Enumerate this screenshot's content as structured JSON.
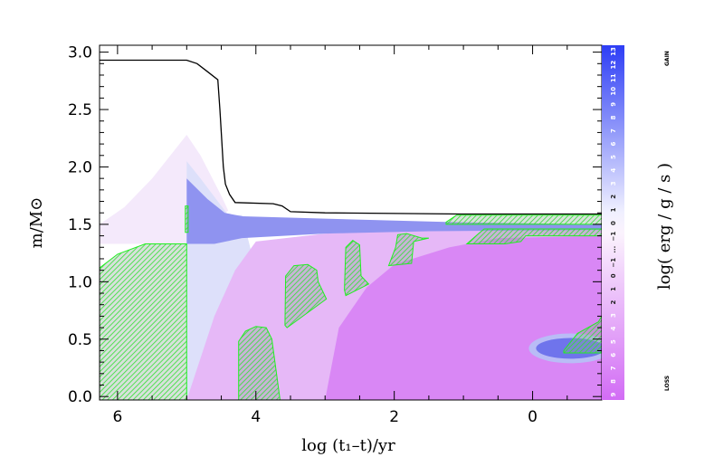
{
  "chart_data": {
    "type": "area",
    "xlabel": "log (t₁–t)/yr",
    "ylabel": "m/M⊙",
    "xlim": [
      6.26,
      -1.0
    ],
    "ylim": [
      -0.03,
      3.06
    ],
    "x_reversed": true,
    "x_ticks": [
      6,
      4,
      2,
      0
    ],
    "x_tick_labels": [
      "6",
      "4",
      "2",
      "0"
    ],
    "y_ticks": [
      0.0,
      0.5,
      1.0,
      1.5,
      2.0,
      2.5,
      3.0
    ],
    "y_tick_labels": [
      "0.0",
      "0.5",
      "1.0",
      "1.5",
      "2.0",
      "2.5",
      "3.0"
    ],
    "grid": false,
    "total_mass_line": {
      "color": "#000000",
      "points": [
        [
          6.26,
          2.93
        ],
        [
          5.0,
          2.93
        ],
        [
          4.85,
          2.9
        ],
        [
          4.7,
          2.83
        ],
        [
          4.55,
          2.76
        ],
        [
          4.52,
          2.5
        ],
        [
          4.47,
          2.0
        ],
        [
          4.44,
          1.85
        ],
        [
          4.38,
          1.76
        ],
        [
          4.3,
          1.69
        ],
        [
          3.75,
          1.68
        ],
        [
          3.62,
          1.66
        ],
        [
          3.5,
          1.61
        ],
        [
          3.0,
          1.6
        ],
        [
          1.0,
          1.59
        ],
        [
          -1.0,
          1.59
        ]
      ]
    },
    "energy_regions": [
      {
        "level": "loss-low",
        "color": "#f4e9fb",
        "polygon": [
          [
            6.26,
            1.5
          ],
          [
            5.9,
            1.65
          ],
          [
            5.5,
            1.9
          ],
          [
            5.0,
            2.28
          ],
          [
            4.8,
            2.1
          ],
          [
            4.5,
            1.75
          ],
          [
            4.4,
            1.62
          ],
          [
            5.0,
            1.33
          ],
          [
            6.26,
            1.33
          ]
        ]
      },
      {
        "level": "gain-low",
        "color": "#dde0fa",
        "polygon": [
          [
            5.0,
            2.05
          ],
          [
            4.8,
            1.9
          ],
          [
            4.55,
            1.7
          ],
          [
            4.4,
            1.58
          ],
          [
            4.2,
            1.58
          ],
          [
            4.0,
            1.1
          ],
          [
            3.8,
            0.75
          ],
          [
            3.6,
            0.5
          ],
          [
            5.0,
            -0.03
          ]
        ]
      },
      {
        "level": "loss-mid",
        "color": "#e6b8f7",
        "polygon": [
          [
            5.0,
            -0.03
          ],
          [
            4.6,
            0.7
          ],
          [
            4.3,
            1.1
          ],
          [
            4.0,
            1.35
          ],
          [
            3.0,
            1.42
          ],
          [
            1.5,
            1.45
          ],
          [
            -1.0,
            1.45
          ],
          [
            -1.0,
            -0.03
          ]
        ]
      },
      {
        "level": "loss-high",
        "color": "#d987f5",
        "polygon": [
          [
            3.0,
            -0.03
          ],
          [
            2.8,
            0.6
          ],
          [
            2.4,
            0.95
          ],
          [
            2.0,
            1.15
          ],
          [
            1.2,
            1.3
          ],
          [
            0.5,
            1.38
          ],
          [
            -1.0,
            1.4
          ],
          [
            -1.0,
            -0.03
          ]
        ]
      },
      {
        "level": "gain-mid",
        "color": "#8f93f0",
        "polygon": [
          [
            5.0,
            1.33
          ],
          [
            5.0,
            1.9
          ],
          [
            4.7,
            1.72
          ],
          [
            4.45,
            1.6
          ],
          [
            4.2,
            1.57
          ],
          [
            3.0,
            1.55
          ],
          [
            1.2,
            1.52
          ],
          [
            -1.0,
            1.5
          ],
          [
            -1.0,
            1.45
          ],
          [
            1.5,
            1.44
          ],
          [
            3.0,
            1.42
          ],
          [
            4.2,
            1.38
          ],
          [
            4.6,
            1.33
          ]
        ]
      },
      {
        "level": "gain-mid",
        "color": "#6f74ec",
        "ellipse": {
          "cx": -0.55,
          "cy": 0.42,
          "rx": 0.5,
          "ry": 0.09
        }
      }
    ],
    "convective_zones": [
      {
        "polygon": [
          [
            6.26,
            1.12
          ],
          [
            6.0,
            1.24
          ],
          [
            5.6,
            1.33
          ],
          [
            5.0,
            1.33
          ],
          [
            5.0,
            -0.03
          ],
          [
            6.26,
            -0.03
          ]
        ]
      },
      {
        "polygon": [
          [
            4.25,
            -0.03
          ],
          [
            4.25,
            0.48
          ],
          [
            4.15,
            0.57
          ],
          [
            4.0,
            0.61
          ],
          [
            3.85,
            0.6
          ],
          [
            3.77,
            0.5
          ],
          [
            3.65,
            -0.03
          ]
        ]
      },
      {
        "polygon": [
          [
            3.58,
            0.62
          ],
          [
            3.57,
            1.05
          ],
          [
            3.45,
            1.14
          ],
          [
            3.25,
            1.15
          ],
          [
            3.12,
            1.1
          ],
          [
            3.1,
            1.0
          ],
          [
            2.98,
            0.85
          ],
          [
            3.55,
            0.6
          ]
        ]
      },
      {
        "polygon": [
          [
            2.72,
            0.93
          ],
          [
            2.7,
            1.3
          ],
          [
            2.6,
            1.36
          ],
          [
            2.5,
            1.32
          ],
          [
            2.48,
            1.05
          ],
          [
            2.37,
            0.98
          ],
          [
            2.7,
            0.88
          ]
        ]
      },
      {
        "polygon": [
          [
            2.08,
            1.14
          ],
          [
            1.98,
            1.3
          ],
          [
            1.95,
            1.41
          ],
          [
            1.82,
            1.42
          ],
          [
            1.6,
            1.38
          ],
          [
            1.5,
            1.38
          ],
          [
            1.72,
            1.35
          ],
          [
            1.75,
            1.16
          ]
        ]
      },
      {
        "polygon": [
          [
            0.95,
            1.33
          ],
          [
            0.78,
            1.42
          ],
          [
            0.7,
            1.46
          ],
          [
            -1.0,
            1.46
          ],
          [
            -1.0,
            1.4
          ],
          [
            0.1,
            1.4
          ],
          [
            0.17,
            1.35
          ],
          [
            0.4,
            1.33
          ]
        ]
      },
      {
        "polygon": [
          [
            1.25,
            1.52
          ],
          [
            1.1,
            1.58
          ],
          [
            -1.0,
            1.58
          ],
          [
            -1.0,
            1.5
          ],
          [
            1.25,
            1.5
          ]
        ]
      },
      {
        "polygon": [
          [
            -0.45,
            0.4
          ],
          [
            -0.65,
            0.55
          ],
          [
            -0.95,
            0.65
          ],
          [
            -1.0,
            0.7
          ],
          [
            -1.0,
            0.38
          ],
          [
            -0.45,
            0.38
          ]
        ]
      },
      {
        "polygon": [
          [
            5.02,
            1.66
          ],
          [
            4.98,
            1.66
          ],
          [
            4.98,
            1.43
          ],
          [
            5.02,
            1.43
          ]
        ]
      }
    ],
    "colorbar": {
      "label": "log( erg / g / s )",
      "top_label": "GAIN",
      "bottom_label": "LOSS",
      "tick_labels": [
        "9",
        "8",
        "7",
        "6",
        "5",
        "4",
        "3",
        "2",
        "1",
        "0",
        "−1",
        "...",
        "−1",
        "0",
        "1",
        "2",
        "3",
        "4",
        "5",
        "6",
        "7",
        "8",
        "9",
        "10",
        "11",
        "12",
        "13"
      ],
      "bottom_color": "#d26cf5",
      "middle_color": "#ffffff",
      "top_color": "#2d3df5"
    }
  }
}
